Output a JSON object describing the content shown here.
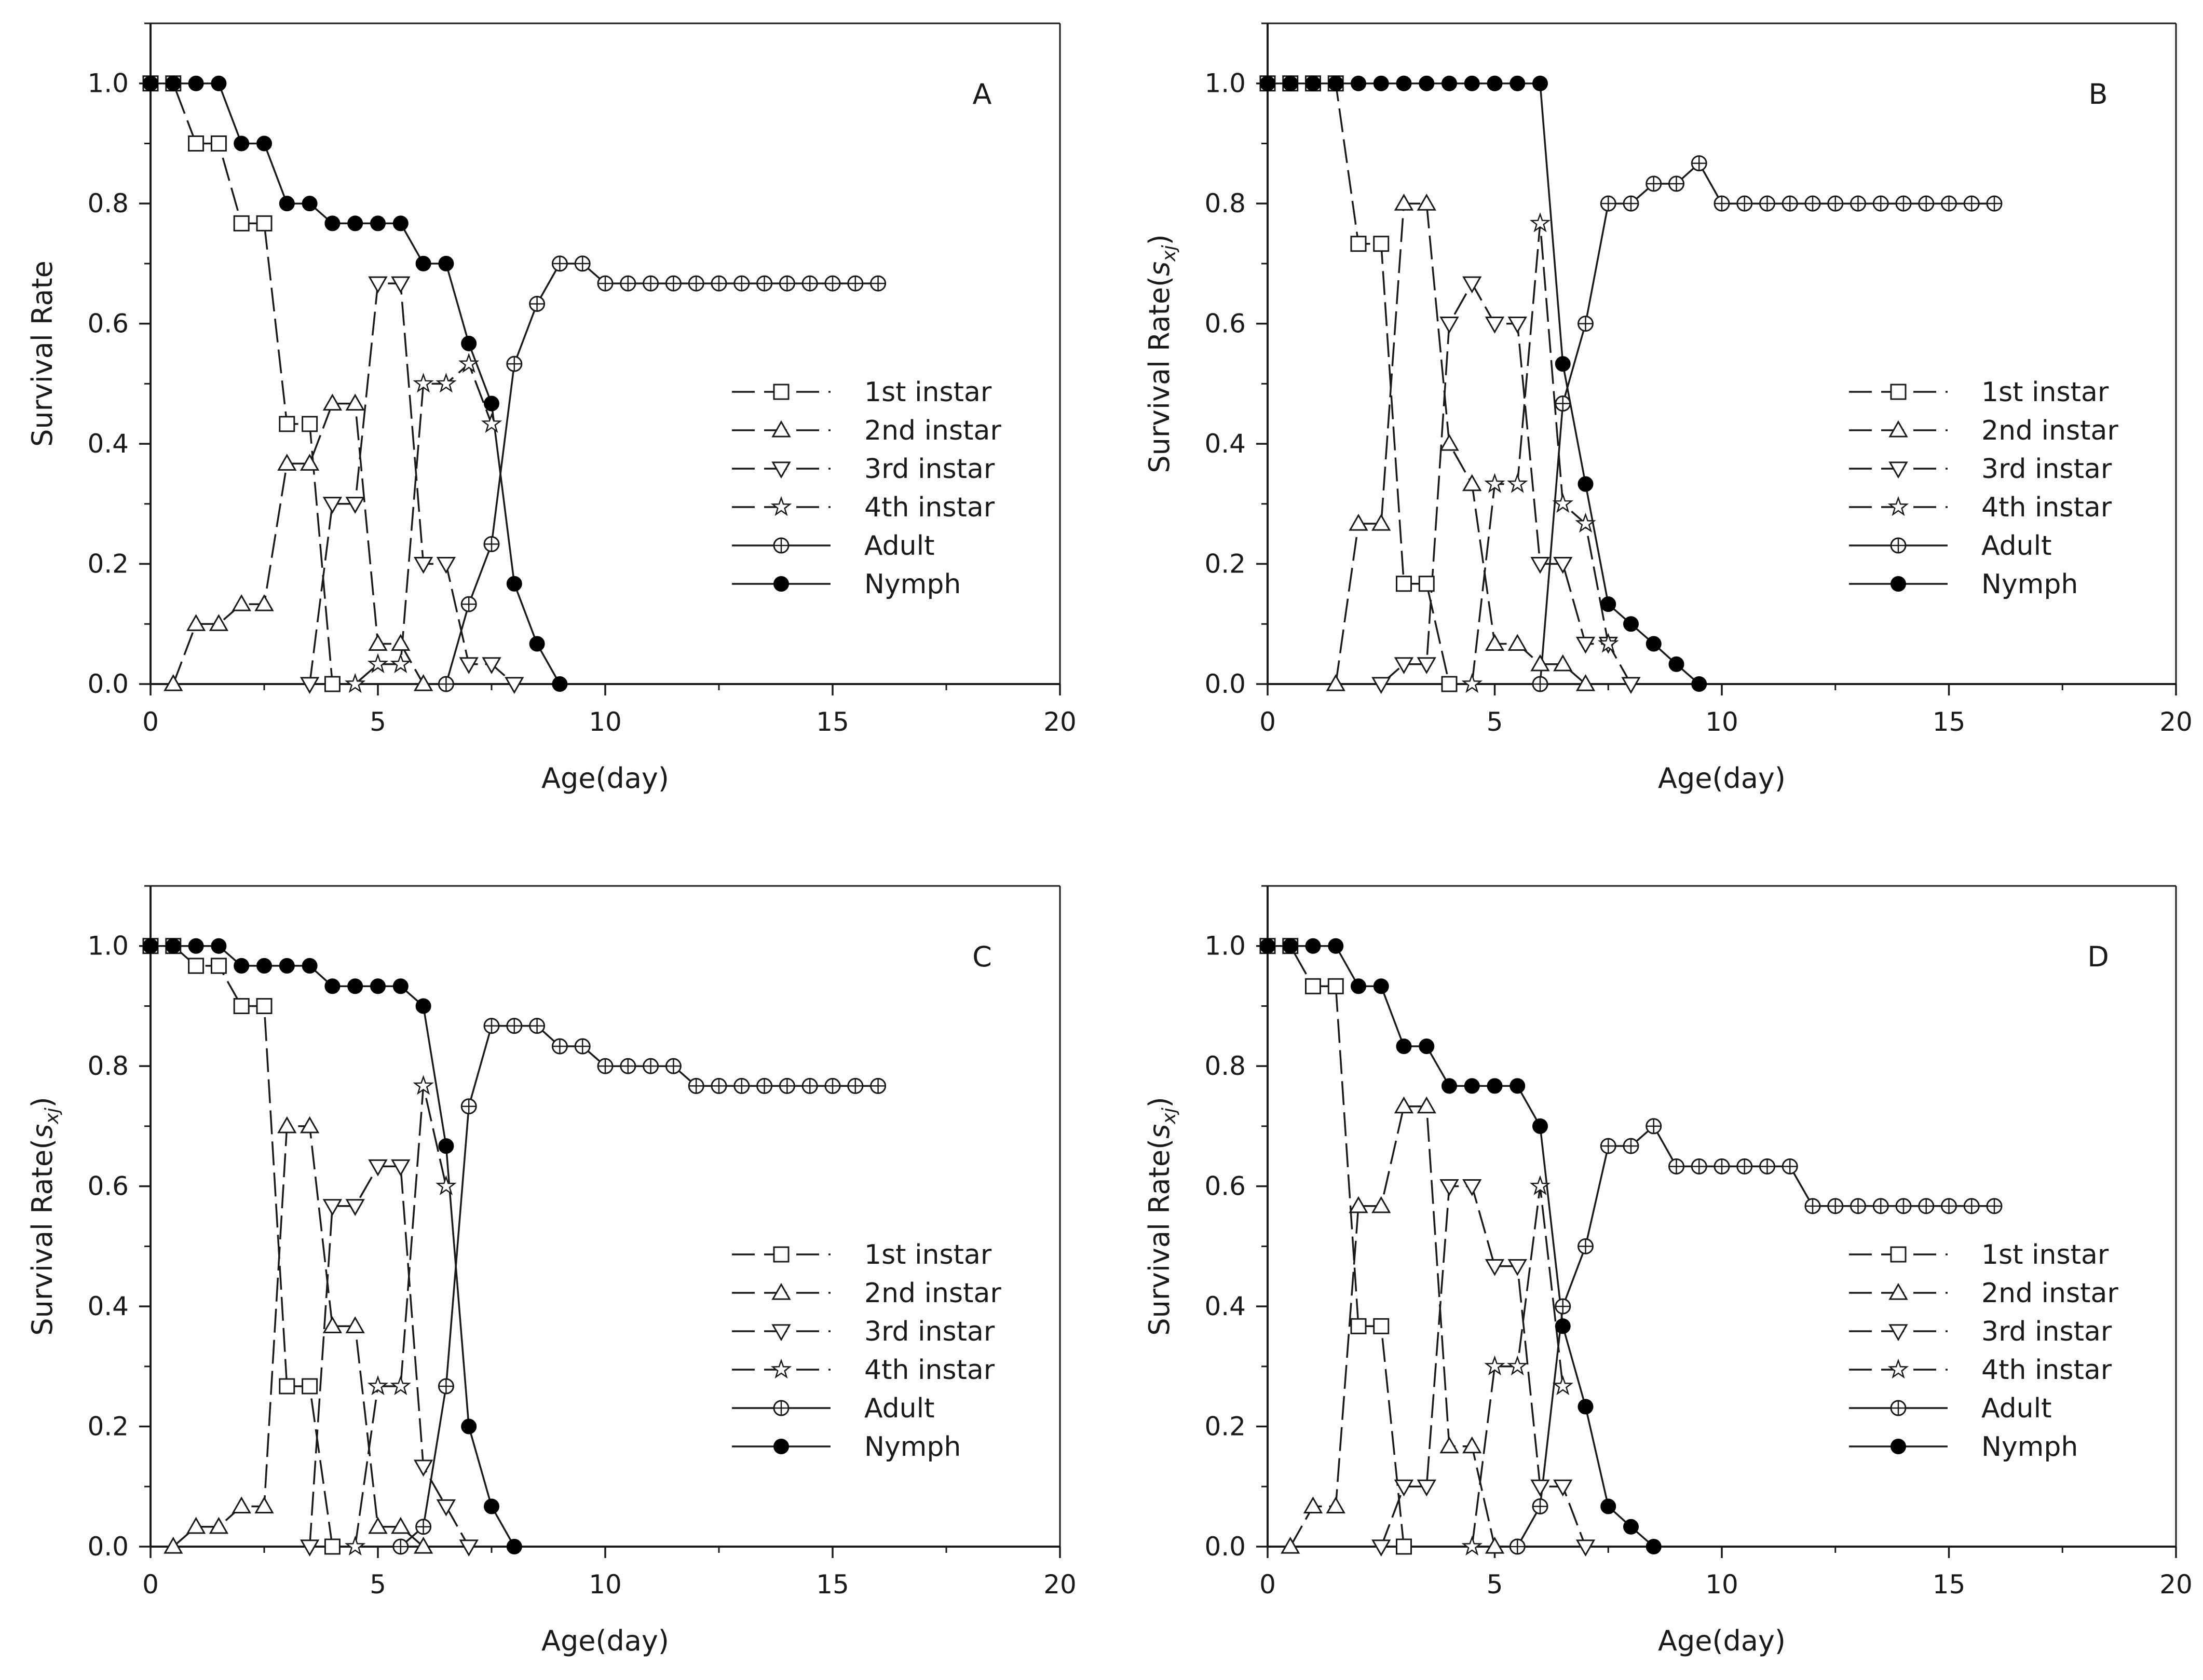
{
  "chart_data": [
    {
      "type": "line",
      "panel_label": "A",
      "xlabel": "Age(day)",
      "ylabel": "Survival Rate",
      "ylabel_sub": "",
      "ylabel_tail": "",
      "xlim": [
        0,
        20
      ],
      "ylim": [
        0,
        1.1
      ],
      "x_ticks": [
        0,
        5,
        10,
        15,
        20
      ],
      "y_ticks": [
        0.0,
        0.2,
        0.4,
        0.6,
        0.8,
        1.0
      ],
      "y_tick_labels": [
        "0.0",
        "0.2",
        "0.4",
        "0.6",
        "0.8",
        "1.0"
      ],
      "legend_position": "center-right",
      "grid": false,
      "series": [
        {
          "name": "1st instar",
          "marker": "square",
          "dash": true,
          "x": [
            0,
            0.5,
            1,
            1.5,
            2,
            2.5,
            3,
            3.5,
            4
          ],
          "y": [
            1.0,
            1.0,
            0.9,
            0.9,
            0.767,
            0.767,
            0.433,
            0.433,
            0.0
          ]
        },
        {
          "name": "2nd instar",
          "marker": "triangle-up",
          "dash": true,
          "x": [
            0.5,
            1,
            1.5,
            2,
            2.5,
            3,
            3.5,
            4,
            4.5,
            5,
            5.5,
            6
          ],
          "y": [
            0.0,
            0.1,
            0.1,
            0.133,
            0.133,
            0.367,
            0.367,
            0.467,
            0.467,
            0.067,
            0.067,
            0.0
          ]
        },
        {
          "name": "3rd instar",
          "marker": "triangle-down",
          "dash": true,
          "x": [
            3.5,
            4,
            4.5,
            5,
            5.5,
            6,
            6.5,
            7,
            7.5,
            8
          ],
          "y": [
            0.0,
            0.3,
            0.3,
            0.667,
            0.667,
            0.2,
            0.2,
            0.033,
            0.033,
            0.0
          ]
        },
        {
          "name": "4th instar",
          "marker": "star",
          "dash": true,
          "x": [
            4.5,
            5,
            5.5,
            6,
            6.5,
            7,
            7.5
          ],
          "y": [
            0.0,
            0.033,
            0.033,
            0.5,
            0.5,
            0.533,
            0.433
          ]
        },
        {
          "name": "Adult",
          "marker": "circle-plus",
          "dash": false,
          "x": [
            6.5,
            7,
            7.5,
            8,
            8.5,
            9,
            9.5,
            10,
            10.5,
            11,
            11.5,
            12,
            12.5,
            13,
            13.5,
            14,
            14.5,
            15,
            15.5,
            16
          ],
          "y": [
            0.0,
            0.133,
            0.233,
            0.533,
            0.633,
            0.7,
            0.7,
            0.667,
            0.667,
            0.667,
            0.667,
            0.667,
            0.667,
            0.667,
            0.667,
            0.667,
            0.667,
            0.667,
            0.667,
            0.667
          ]
        },
        {
          "name": "Nymph",
          "marker": "circle-filled",
          "dash": false,
          "x": [
            0,
            0.5,
            1,
            1.5,
            2,
            2.5,
            3,
            3.5,
            4,
            4.5,
            5,
            5.5,
            6,
            6.5,
            7,
            7.5,
            8,
            8.5,
            9
          ],
          "y": [
            1.0,
            1.0,
            1.0,
            1.0,
            0.9,
            0.9,
            0.8,
            0.8,
            0.767,
            0.767,
            0.767,
            0.767,
            0.7,
            0.7,
            0.567,
            0.467,
            0.167,
            0.067,
            0.0
          ]
        }
      ]
    },
    {
      "type": "line",
      "panel_label": "B",
      "xlabel": "Age(day)",
      "ylabel": "Survival Rate(",
      "ylabel_sub": "s",
      "ylabel_sub_index": "xj",
      "ylabel_tail": ")",
      "xlim": [
        0,
        20
      ],
      "ylim": [
        0,
        1.1
      ],
      "x_ticks": [
        0,
        5,
        10,
        15,
        20
      ],
      "y_ticks": [
        0.0,
        0.2,
        0.4,
        0.6,
        0.8,
        1.0
      ],
      "y_tick_labels": [
        "0.0",
        "0.2",
        "0.4",
        "0.6",
        "0.8",
        "1.0"
      ],
      "legend_position": "center-right",
      "grid": false,
      "series": [
        {
          "name": "1st instar",
          "marker": "square",
          "dash": true,
          "x": [
            0,
            0.5,
            1,
            1.5,
            2,
            2.5,
            3,
            3.5,
            4
          ],
          "y": [
            1.0,
            1.0,
            1.0,
            1.0,
            0.733,
            0.733,
            0.167,
            0.167,
            0.0
          ]
        },
        {
          "name": "2nd instar",
          "marker": "triangle-up",
          "dash": true,
          "x": [
            1.5,
            2,
            2.5,
            3,
            3.5,
            4,
            4.5,
            5,
            5.5,
            6,
            6.5,
            7
          ],
          "y": [
            0.0,
            0.267,
            0.267,
            0.8,
            0.8,
            0.4,
            0.333,
            0.067,
            0.067,
            0.033,
            0.033,
            0.0
          ]
        },
        {
          "name": "3rd instar",
          "marker": "triangle-down",
          "dash": true,
          "x": [
            2.5,
            3,
            3.5,
            4,
            4.5,
            5,
            5.5,
            6,
            6.5,
            7,
            7.5,
            8
          ],
          "y": [
            0.0,
            0.033,
            0.033,
            0.6,
            0.667,
            0.6,
            0.6,
            0.2,
            0.2,
            0.067,
            0.067,
            0.0
          ]
        },
        {
          "name": "4th instar",
          "marker": "star",
          "dash": true,
          "x": [
            4.5,
            5,
            5.5,
            6,
            6.5,
            7,
            7.5
          ],
          "y": [
            0.0,
            0.333,
            0.333,
            0.767,
            0.3,
            0.267,
            0.067
          ]
        },
        {
          "name": "Adult",
          "marker": "circle-plus",
          "dash": false,
          "x": [
            6,
            6.5,
            7,
            7.5,
            8,
            8.5,
            9,
            9.5,
            10,
            10.5,
            11,
            11.5,
            12,
            12.5,
            13,
            13.5,
            14,
            14.5,
            15,
            15.5,
            16
          ],
          "y": [
            0.0,
            0.467,
            0.6,
            0.8,
            0.8,
            0.833,
            0.833,
            0.867,
            0.8,
            0.8,
            0.8,
            0.8,
            0.8,
            0.8,
            0.8,
            0.8,
            0.8,
            0.8,
            0.8,
            0.8,
            0.8
          ]
        },
        {
          "name": "Nymph",
          "marker": "circle-filled",
          "dash": false,
          "x": [
            0,
            0.5,
            1,
            1.5,
            2,
            2.5,
            3,
            3.5,
            4,
            4.5,
            5,
            5.5,
            6,
            6.5,
            7,
            7.5,
            8,
            8.5,
            9,
            9.5
          ],
          "y": [
            1.0,
            1.0,
            1.0,
            1.0,
            1.0,
            1.0,
            1.0,
            1.0,
            1.0,
            1.0,
            1.0,
            1.0,
            1.0,
            0.533,
            0.333,
            0.133,
            0.1,
            0.067,
            0.033,
            0.0
          ]
        }
      ]
    },
    {
      "type": "line",
      "panel_label": "C",
      "xlabel": "Age(day)",
      "ylabel": "Survival Rate(",
      "ylabel_sub": "s",
      "ylabel_sub_index": "xj",
      "ylabel_tail": ")",
      "xlim": [
        0,
        20
      ],
      "ylim": [
        0,
        1.1
      ],
      "x_ticks": [
        0,
        5,
        10,
        15,
        20
      ],
      "y_ticks": [
        0.0,
        0.2,
        0.4,
        0.6,
        0.8,
        1.0
      ],
      "y_tick_labels": [
        "0.0",
        "0.2",
        "0.4",
        "0.6",
        "0.8",
        "1.0"
      ],
      "legend_position": "center-right",
      "grid": false,
      "series": [
        {
          "name": "1st instar",
          "marker": "square",
          "dash": true,
          "x": [
            0,
            0.5,
            1,
            1.5,
            2,
            2.5,
            3,
            3.5,
            4
          ],
          "y": [
            1.0,
            1.0,
            0.967,
            0.967,
            0.9,
            0.9,
            0.267,
            0.267,
            0.0
          ]
        },
        {
          "name": "2nd instar",
          "marker": "triangle-up",
          "dash": true,
          "x": [
            0.5,
            1,
            1.5,
            2,
            2.5,
            3,
            3.5,
            4,
            4.5,
            5,
            5.5,
            6
          ],
          "y": [
            0.0,
            0.033,
            0.033,
            0.067,
            0.067,
            0.7,
            0.7,
            0.367,
            0.367,
            0.033,
            0.033,
            0.0
          ]
        },
        {
          "name": "3rd instar",
          "marker": "triangle-down",
          "dash": true,
          "x": [
            3.5,
            4,
            4.5,
            5,
            5.5,
            6,
            6.5,
            7
          ],
          "y": [
            0.0,
            0.567,
            0.567,
            0.633,
            0.633,
            0.133,
            0.067,
            0.0
          ]
        },
        {
          "name": "4th instar",
          "marker": "star",
          "dash": true,
          "x": [
            4.5,
            5,
            5.5,
            6,
            6.5
          ],
          "y": [
            0.0,
            0.267,
            0.267,
            0.767,
            0.6
          ]
        },
        {
          "name": "Adult",
          "marker": "circle-plus",
          "dash": false,
          "x": [
            5.5,
            6,
            6.5,
            7,
            7.5,
            8,
            8.5,
            9,
            9.5,
            10,
            10.5,
            11,
            11.5,
            12,
            12.5,
            13,
            13.5,
            14,
            14.5,
            15,
            15.5,
            16
          ],
          "y": [
            0.0,
            0.033,
            0.267,
            0.733,
            0.867,
            0.867,
            0.867,
            0.833,
            0.833,
            0.8,
            0.8,
            0.8,
            0.8,
            0.767,
            0.767,
            0.767,
            0.767,
            0.767,
            0.767,
            0.767,
            0.767,
            0.767
          ]
        },
        {
          "name": "Nymph",
          "marker": "circle-filled",
          "dash": false,
          "x": [
            0,
            0.5,
            1,
            1.5,
            2,
            2.5,
            3,
            3.5,
            4,
            4.5,
            5,
            5.5,
            6,
            6.5,
            7,
            7.5,
            8
          ],
          "y": [
            1.0,
            1.0,
            1.0,
            1.0,
            0.967,
            0.967,
            0.967,
            0.967,
            0.933,
            0.933,
            0.933,
            0.933,
            0.9,
            0.667,
            0.2,
            0.067,
            0.0
          ]
        }
      ]
    },
    {
      "type": "line",
      "panel_label": "D",
      "xlabel": "Age(day)",
      "ylabel": "Survival Rate(",
      "ylabel_sub": "s",
      "ylabel_sub_index": "xj",
      "ylabel_tail": ")",
      "xlim": [
        0,
        20
      ],
      "ylim": [
        0,
        1.1
      ],
      "x_ticks": [
        0,
        5,
        10,
        15,
        20
      ],
      "y_ticks": [
        0.0,
        0.2,
        0.4,
        0.6,
        0.8,
        1.0
      ],
      "y_tick_labels": [
        "0.0",
        "0.2",
        "0.4",
        "0.6",
        "0.8",
        "1.0"
      ],
      "legend_position": "center-right",
      "grid": false,
      "series": [
        {
          "name": "1st instar",
          "marker": "square",
          "dash": true,
          "x": [
            0,
            0.5,
            1,
            1.5,
            2,
            2.5,
            3
          ],
          "y": [
            1.0,
            1.0,
            0.933,
            0.933,
            0.367,
            0.367,
            0.0
          ]
        },
        {
          "name": "2nd instar",
          "marker": "triangle-up",
          "dash": true,
          "x": [
            0.5,
            1,
            1.5,
            2,
            2.5,
            3,
            3.5,
            4,
            4.5,
            5
          ],
          "y": [
            0.0,
            0.067,
            0.067,
            0.567,
            0.567,
            0.733,
            0.733,
            0.167,
            0.167,
            0.0
          ]
        },
        {
          "name": "3rd instar",
          "marker": "triangle-down",
          "dash": true,
          "x": [
            2.5,
            3,
            3.5,
            4,
            4.5,
            5,
            5.5,
            6,
            6.5,
            7
          ],
          "y": [
            0.0,
            0.1,
            0.1,
            0.6,
            0.6,
            0.467,
            0.467,
            0.1,
            0.1,
            0.0
          ]
        },
        {
          "name": "4th instar",
          "marker": "star",
          "dash": true,
          "x": [
            4.5,
            5,
            5.5,
            6,
            6.5
          ],
          "y": [
            0.0,
            0.3,
            0.3,
            0.6,
            0.267
          ]
        },
        {
          "name": "Adult",
          "marker": "circle-plus",
          "dash": false,
          "x": [
            5.5,
            6,
            6.5,
            7,
            7.5,
            8,
            8.5,
            9,
            9.5,
            10,
            10.5,
            11,
            11.5,
            12,
            12.5,
            13,
            13.5,
            14,
            14.5,
            15,
            15.5,
            16
          ],
          "y": [
            0.0,
            0.067,
            0.4,
            0.5,
            0.667,
            0.667,
            0.7,
            0.633,
            0.633,
            0.633,
            0.633,
            0.633,
            0.633,
            0.567,
            0.567,
            0.567,
            0.567,
            0.567,
            0.567,
            0.567,
            0.567,
            0.567
          ]
        },
        {
          "name": "Nymph",
          "marker": "circle-filled",
          "dash": false,
          "x": [
            0,
            0.5,
            1,
            1.5,
            2,
            2.5,
            3,
            3.5,
            4,
            4.5,
            5,
            5.5,
            6,
            6.5,
            7,
            7.5,
            8,
            8.5
          ],
          "y": [
            1.0,
            1.0,
            1.0,
            1.0,
            0.933,
            0.933,
            0.833,
            0.833,
            0.767,
            0.767,
            0.767,
            0.767,
            0.7,
            0.367,
            0.233,
            0.067,
            0.033,
            0.0
          ]
        }
      ]
    }
  ]
}
